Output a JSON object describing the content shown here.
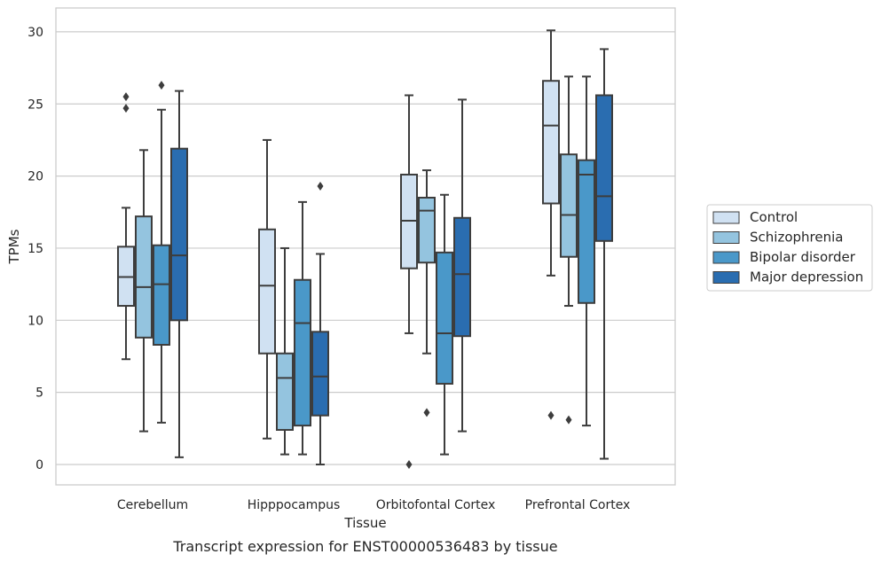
{
  "chart_data": {
    "type": "box",
    "title": "Transcript expression for ENST00000536483 by tissue",
    "xlabel": "Tissue",
    "ylabel": "TPMs",
    "ylim": [
      -1.4,
      31.6
    ],
    "yticks": [
      0,
      5,
      10,
      15,
      20,
      25,
      30
    ],
    "grid": true,
    "legend_position": "right",
    "categories": [
      "Cerebellum",
      "Hipppocampus",
      "Orbitofontal Cortex",
      "Prefrontal Cortex"
    ],
    "series": [
      {
        "name": "Control",
        "color": "#d0e1f2",
        "boxes": [
          {
            "whisker_low": 7.3,
            "q1": 11.0,
            "median": 13.0,
            "q3": 15.1,
            "whisker_high": 17.8,
            "outliers": [
              24.7,
              25.5
            ]
          },
          {
            "whisker_low": 1.8,
            "q1": 7.7,
            "median": 12.4,
            "q3": 16.3,
            "whisker_high": 22.5,
            "outliers": []
          },
          {
            "whisker_low": 9.1,
            "q1": 13.6,
            "median": 16.9,
            "q3": 20.1,
            "whisker_high": 25.6,
            "outliers": [
              0.0
            ]
          },
          {
            "whisker_low": 13.1,
            "q1": 18.1,
            "median": 23.5,
            "q3": 26.6,
            "whisker_high": 30.1,
            "outliers": [
              3.4
            ]
          }
        ]
      },
      {
        "name": "Schizophrenia",
        "color": "#94c4df",
        "boxes": [
          {
            "whisker_low": 2.3,
            "q1": 8.8,
            "median": 12.3,
            "q3": 17.2,
            "whisker_high": 21.8,
            "outliers": []
          },
          {
            "whisker_low": 0.7,
            "q1": 2.4,
            "median": 6.0,
            "q3": 7.7,
            "whisker_high": 15.0,
            "outliers": []
          },
          {
            "whisker_low": 7.7,
            "q1": 14.0,
            "median": 17.6,
            "q3": 18.5,
            "whisker_high": 20.4,
            "outliers": [
              3.6
            ]
          },
          {
            "whisker_low": 11.0,
            "q1": 14.4,
            "median": 17.3,
            "q3": 21.5,
            "whisker_high": 26.9,
            "outliers": [
              3.1
            ]
          }
        ]
      },
      {
        "name": "Bipolar disorder",
        "color": "#4a98c9",
        "boxes": [
          {
            "whisker_low": 2.9,
            "q1": 8.3,
            "median": 12.5,
            "q3": 15.2,
            "whisker_high": 24.6,
            "outliers": [
              26.3
            ]
          },
          {
            "whisker_low": 0.7,
            "q1": 2.7,
            "median": 9.8,
            "q3": 12.8,
            "whisker_high": 18.2,
            "outliers": []
          },
          {
            "whisker_low": 0.7,
            "q1": 5.6,
            "median": 9.1,
            "q3": 14.7,
            "whisker_high": 18.7,
            "outliers": []
          },
          {
            "whisker_low": 2.7,
            "q1": 11.2,
            "median": 20.1,
            "q3": 21.1,
            "whisker_high": 26.9,
            "outliers": []
          }
        ]
      },
      {
        "name": "Major depression",
        "color": "#2a6db0",
        "boxes": [
          {
            "whisker_low": 0.5,
            "q1": 10.0,
            "median": 14.5,
            "q3": 21.9,
            "whisker_high": 25.9,
            "outliers": []
          },
          {
            "whisker_low": 0.0,
            "q1": 3.4,
            "median": 6.1,
            "q3": 9.2,
            "whisker_high": 14.6,
            "outliers": [
              19.3
            ]
          },
          {
            "whisker_low": 2.3,
            "q1": 8.9,
            "median": 13.2,
            "q3": 17.1,
            "whisker_high": 25.3,
            "outliers": []
          },
          {
            "whisker_low": 0.4,
            "q1": 15.5,
            "median": 18.6,
            "q3": 25.6,
            "whisker_high": 28.8,
            "outliers": []
          }
        ]
      }
    ]
  }
}
